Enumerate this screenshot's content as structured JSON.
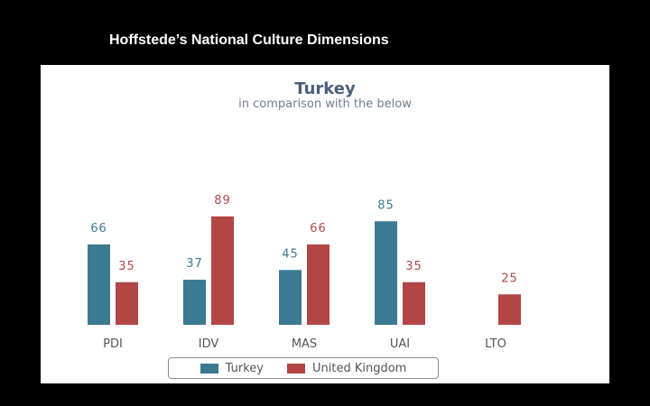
{
  "slide": {
    "title": "Hoffstede’s National Culture Dimensions"
  },
  "chart_data": {
    "type": "bar",
    "title": "Turkey",
    "subtitle": "in comparison with the below",
    "categories": [
      "PDI",
      "IDV",
      "MAS",
      "UAI",
      "LTO"
    ],
    "series": [
      {
        "name": "Turkey",
        "color": "#3b7a91",
        "values": [
          66,
          37,
          45,
          85,
          null
        ]
      },
      {
        "name": "United Kingdom",
        "color": "#b34545",
        "values": [
          35,
          89,
          66,
          35,
          25
        ]
      }
    ],
    "ylim": [
      0,
      100
    ],
    "grid": false,
    "legend_position": "bottom"
  }
}
